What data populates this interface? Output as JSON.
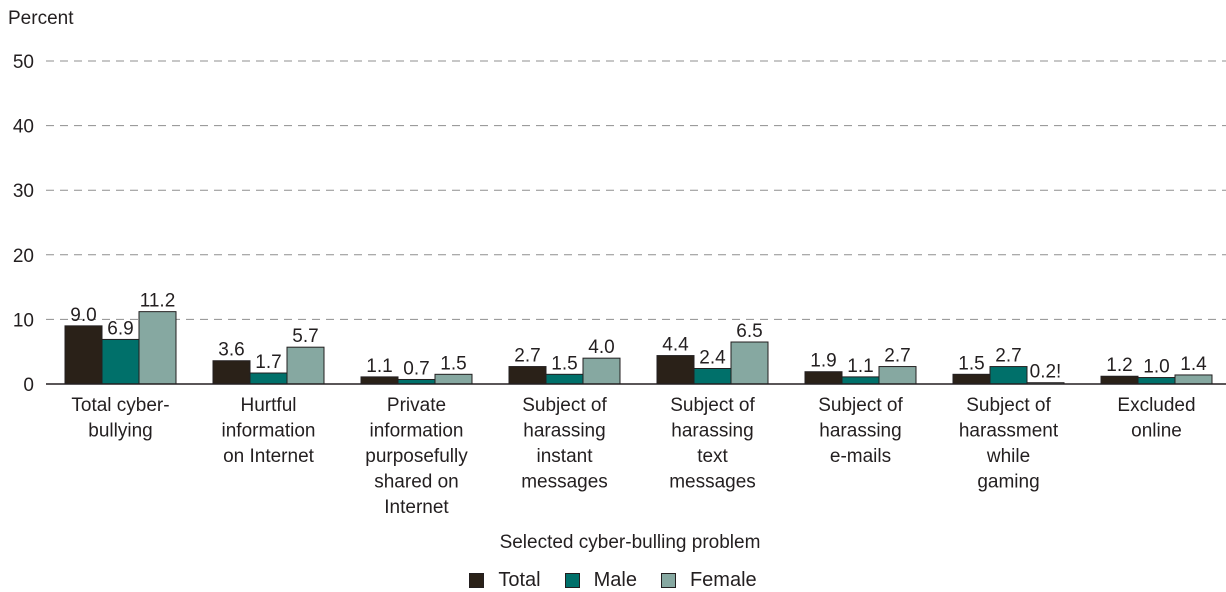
{
  "chart_data": {
    "type": "bar",
    "ylabel": "Percent",
    "xlabel": "Selected cyber-bulling problem",
    "ylim": [
      0,
      50
    ],
    "yticks": [
      0,
      10,
      20,
      30,
      40,
      50
    ],
    "grid": true,
    "legend_position": "bottom-center",
    "categories": [
      [
        "Total cyber-",
        "bullying"
      ],
      [
        "Hurtful",
        "information",
        "on Internet"
      ],
      [
        "Private",
        "information",
        "purposefully",
        "shared on",
        "Internet"
      ],
      [
        "Subject of",
        "harassing",
        "instant",
        "messages"
      ],
      [
        "Subject of",
        "harassing",
        "text",
        "messages"
      ],
      [
        "Subject of",
        "harassing",
        "e-mails"
      ],
      [
        "Subject of",
        "harassment",
        "while",
        "gaming"
      ],
      [
        "Excluded",
        "online"
      ]
    ],
    "series": [
      {
        "name": "Total",
        "color": "#2a2118",
        "values": [
          9.0,
          3.6,
          1.1,
          2.7,
          4.4,
          1.9,
          1.5,
          1.2
        ],
        "labels": [
          "9.0",
          "3.6",
          "1.1",
          "2.7",
          "4.4",
          "1.9",
          "1.5",
          "1.2"
        ]
      },
      {
        "name": "Male",
        "color": "#00706a",
        "values": [
          6.9,
          1.7,
          0.7,
          1.5,
          2.4,
          1.1,
          2.7,
          1.0
        ],
        "labels": [
          "6.9",
          "1.7",
          "0.7",
          "1.5",
          "2.4",
          "1.1",
          "2.7",
          "1.0"
        ]
      },
      {
        "name": "Female",
        "color": "#86a8a1",
        "values": [
          11.2,
          5.7,
          1.5,
          4.0,
          6.5,
          2.7,
          0.2,
          1.4
        ],
        "labels": [
          "11.2",
          "5.7",
          "1.5",
          "4.0",
          "6.5",
          "2.7",
          "0.2!",
          "1.4"
        ]
      }
    ]
  }
}
